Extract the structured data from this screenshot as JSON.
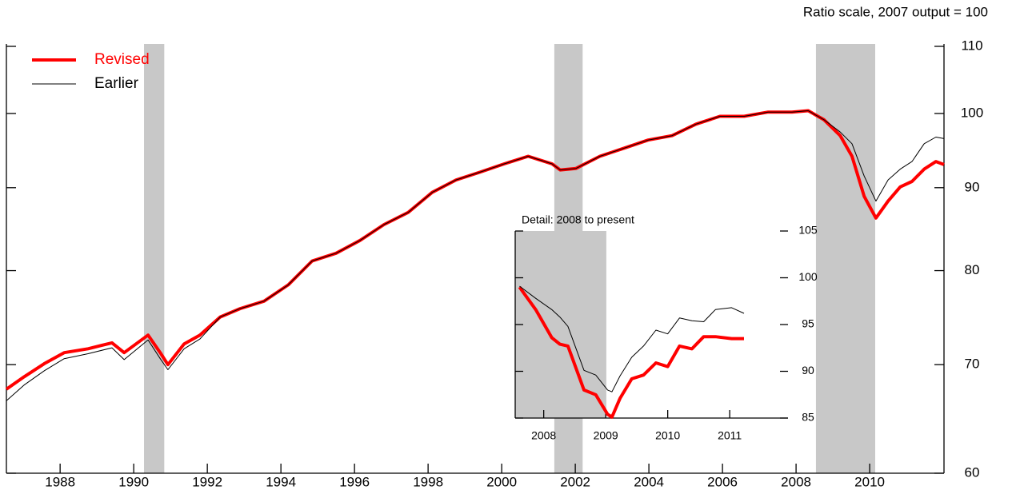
{
  "chart_data": [
    {
      "type": "line",
      "annotation": "Ratio scale, 2007 output = 100",
      "log_scale": true,
      "xlim": [
        1986.54,
        2012.02
      ],
      "ylim": [
        60,
        110
      ],
      "xticks": [
        1988,
        1990,
        1992,
        1994,
        1996,
        1998,
        2000,
        2002,
        2004,
        2006,
        2008,
        2010
      ],
      "yticks": [
        60,
        70,
        80,
        90,
        100,
        110
      ],
      "shaded_periods": [
        [
          1990.28,
          1990.83
        ],
        [
          2001.43,
          2002.2
        ],
        [
          2008.54,
          2010.15
        ]
      ],
      "shade_color": "#c8c8c8",
      "x": [
        1986.54,
        1987.02,
        1987.57,
        1988.11,
        1988.76,
        1989.41,
        1989.74,
        1990.39,
        1990.72,
        1990.93,
        1991.37,
        1991.8,
        1992.35,
        1992.89,
        1993.54,
        1994.2,
        1994.85,
        1995.5,
        1996.15,
        1996.8,
        1997.46,
        1998.11,
        1998.76,
        1999.41,
        2000.07,
        2000.72,
        2001.37,
        2001.59,
        2002.02,
        2002.67,
        2003.33,
        2003.98,
        2004.63,
        2005.28,
        2005.93,
        2006.59,
        2007.24,
        2007.89,
        2008.33,
        2008.76,
        2009.2,
        2009.52,
        2009.85,
        2010.17,
        2010.5,
        2010.83,
        2011.15,
        2011.48,
        2011.8,
        2012.02
      ],
      "series": [
        {
          "name": "Revised",
          "color": "#ff0000",
          "width": 4,
          "values": [
            67.6,
            68.8,
            70.1,
            71.2,
            71.6,
            72.2,
            71.2,
            73.0,
            71.2,
            70.0,
            72.1,
            73.0,
            74.9,
            75.8,
            76.6,
            78.4,
            81.1,
            82.0,
            83.5,
            85.4,
            86.9,
            89.4,
            91.0,
            92.0,
            93.1,
            94.1,
            93.1,
            92.3,
            92.5,
            94.1,
            95.2,
            96.3,
            96.9,
            98.5,
            99.6,
            99.6,
            100.2,
            100.2,
            100.4,
            99.1,
            96.9,
            94.1,
            88.9,
            86.2,
            88.3,
            90.1,
            90.8,
            92.4,
            93.4,
            93.0
          ]
        },
        {
          "name": "Earlier",
          "color": "#000000",
          "width": 1,
          "values": [
            66.5,
            68.0,
            69.4,
            70.6,
            71.1,
            71.7,
            70.5,
            72.5,
            70.6,
            69.5,
            71.6,
            72.6,
            74.9,
            75.8,
            76.6,
            78.4,
            81.1,
            82.0,
            83.5,
            85.4,
            86.9,
            89.4,
            91.0,
            92.0,
            93.1,
            94.1,
            93.1,
            92.3,
            92.5,
            94.1,
            95.2,
            96.3,
            96.9,
            98.5,
            99.6,
            99.6,
            100.2,
            100.2,
            100.4,
            99.1,
            97.4,
            95.8,
            91.5,
            88.3,
            91.0,
            92.4,
            93.4,
            95.8,
            96.7,
            96.5
          ]
        }
      ]
    },
    {
      "type": "line",
      "title": "Detail: 2008 to present",
      "log_scale": false,
      "xlim": [
        2007.54,
        2011.94
      ],
      "ylim": [
        85,
        105
      ],
      "xticks": [
        2008,
        2009,
        2010,
        2011
      ],
      "yticks": [
        85,
        90,
        95,
        100,
        105
      ],
      "shaded_periods": [
        [
          2007.54,
          2009.01
        ]
      ],
      "shade_color": "#c8c8c8",
      "x": [
        2007.61,
        2007.87,
        2008.13,
        2008.26,
        2008.39,
        2008.65,
        2008.84,
        2009.03,
        2009.1,
        2009.23,
        2009.42,
        2009.61,
        2009.81,
        2010.0,
        2010.19,
        2010.39,
        2010.58,
        2010.77,
        2011.03,
        2011.23
      ],
      "series": [
        {
          "name": "Revised",
          "color": "#ff0000",
          "width": 4,
          "values": [
            99.0,
            96.6,
            93.6,
            92.9,
            92.7,
            88.0,
            87.5,
            85.4,
            85.1,
            87.1,
            89.2,
            89.6,
            90.9,
            90.5,
            92.7,
            92.4,
            93.7,
            93.7,
            93.5,
            93.5
          ]
        },
        {
          "name": "Earlier",
          "color": "#000000",
          "width": 1,
          "values": [
            99.1,
            97.8,
            96.6,
            95.8,
            94.8,
            90.1,
            89.6,
            88.0,
            87.8,
            89.5,
            91.5,
            92.7,
            94.4,
            94.0,
            95.7,
            95.4,
            95.3,
            96.6,
            96.8,
            96.2
          ]
        }
      ]
    }
  ]
}
